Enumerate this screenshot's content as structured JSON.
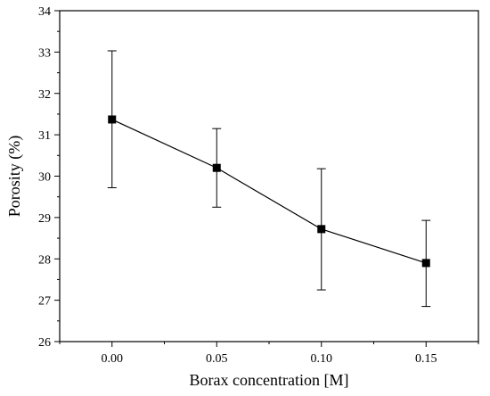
{
  "chart_data": {
    "type": "line",
    "title": "",
    "xlabel": "Borax concentration [M]",
    "ylabel": "Porosity (%)",
    "xlim": [
      -0.025,
      0.175
    ],
    "ylim": [
      26,
      34
    ],
    "x_ticks": [
      0.0,
      0.05,
      0.1,
      0.15
    ],
    "x_tick_labels": [
      "0.00",
      "0.05",
      "0.10",
      "0.15"
    ],
    "y_ticks": [
      26,
      27,
      28,
      29,
      30,
      31,
      32,
      33,
      34
    ],
    "y_tick_labels": [
      "26",
      "27",
      "28",
      "29",
      "30",
      "31",
      "32",
      "33",
      "34"
    ],
    "grid": false,
    "legend": "none",
    "marker": "square",
    "series": [
      {
        "x": [
          0.0,
          0.05,
          0.1,
          0.15
        ],
        "values": [
          31.37,
          30.2,
          28.72,
          27.9
        ],
        "error_low": [
          29.72,
          29.25,
          27.25,
          26.85
        ],
        "error_high": [
          33.03,
          31.15,
          30.18,
          28.93
        ],
        "color": "#000000"
      }
    ]
  }
}
